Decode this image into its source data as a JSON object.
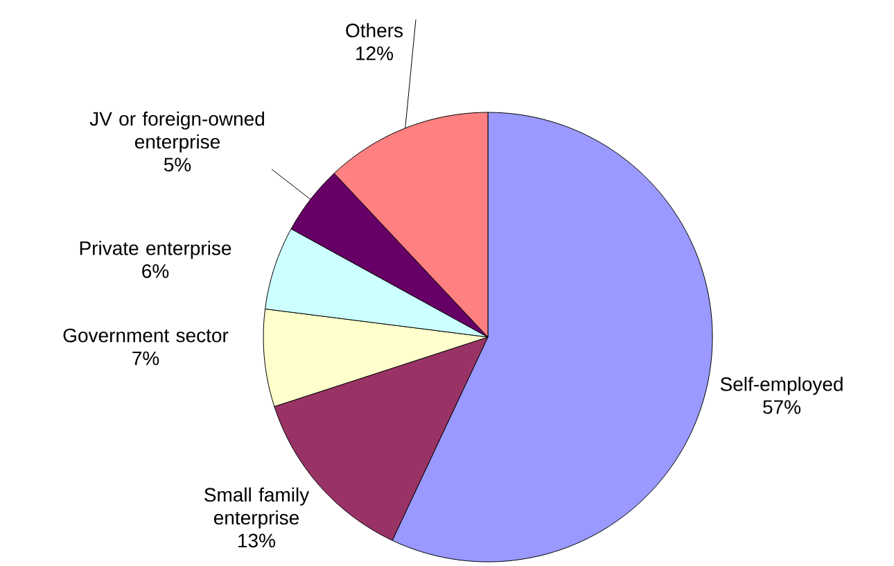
{
  "chart_data": {
    "type": "pie",
    "categories": [
      "Self-employed",
      "Small family enterprise",
      "Government sector",
      "Private enterprise",
      "JV or foreign-owned enterprise",
      "Others"
    ],
    "values": [
      57,
      13,
      7,
      6,
      5,
      12
    ],
    "value_labels": [
      "57%",
      "13%",
      "7%",
      "6%",
      "5%",
      "12%"
    ],
    "colors": [
      "#9999ff",
      "#993366",
      "#ffffcc",
      "#ccffff",
      "#660066",
      "#ff8080"
    ]
  }
}
